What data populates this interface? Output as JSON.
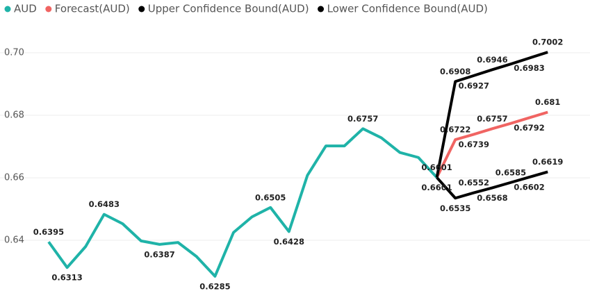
{
  "chart_data": {
    "type": "line",
    "legend": "top-left",
    "grid": true,
    "ylim": [
      0.626,
      0.712
    ],
    "yticks": [
      {
        "value": 0.64,
        "label": "0.64"
      },
      {
        "value": 0.66,
        "label": "0.66"
      },
      {
        "value": 0.68,
        "label": "0.68"
      },
      {
        "value": 0.7,
        "label": "0.70"
      }
    ],
    "series": [
      {
        "name": "AUD",
        "color": "#1fb3a8",
        "values": [
          0.6395,
          0.6313,
          0.638,
          0.6483,
          0.6453,
          0.6398,
          0.6387,
          0.6393,
          0.6348,
          0.6285,
          0.6425,
          0.6475,
          0.6505,
          0.6428,
          0.6608,
          0.6702,
          0.6702,
          0.6757,
          0.6728,
          0.6681,
          0.6665,
          0.6601,
          null,
          null,
          null,
          null,
          null,
          null
        ],
        "value_labels": [
          "0.6395",
          "0.6313",
          null,
          "0.6483",
          null,
          null,
          "0.6387",
          null,
          null,
          "0.6285",
          null,
          null,
          "0.6505",
          "0.6428",
          null,
          null,
          null,
          "0.6757",
          null,
          null,
          null,
          "0.6601",
          null,
          null,
          null,
          null,
          null,
          null
        ]
      },
      {
        "name": "Forecast(AUD)",
        "color": "#f06462",
        "values": [
          null,
          null,
          null,
          null,
          null,
          null,
          null,
          null,
          null,
          null,
          null,
          null,
          null,
          null,
          null,
          null,
          null,
          null,
          null,
          null,
          null,
          0.6601,
          0.6722,
          0.6739,
          0.6757,
          0.6774,
          0.6792,
          0.681
        ],
        "value_labels": [
          null,
          null,
          null,
          null,
          null,
          null,
          null,
          null,
          null,
          null,
          null,
          null,
          null,
          null,
          null,
          null,
          null,
          null,
          null,
          null,
          null,
          null,
          "0.6722",
          "0.6739",
          "0.6757",
          null,
          "0.6792",
          "0.681"
        ]
      },
      {
        "name": "Upper Confidence Bound(AUD)",
        "color": "#000000",
        "values": [
          null,
          null,
          null,
          null,
          null,
          null,
          null,
          null,
          null,
          null,
          null,
          null,
          null,
          null,
          null,
          null,
          null,
          null,
          null,
          null,
          null,
          0.6601,
          0.6908,
          0.6927,
          0.6946,
          0.6964,
          0.6983,
          0.7002
        ],
        "value_labels": [
          null,
          null,
          null,
          null,
          null,
          null,
          null,
          null,
          null,
          null,
          null,
          null,
          null,
          null,
          null,
          null,
          null,
          null,
          null,
          null,
          null,
          null,
          "0.6908",
          "0.6927",
          "0.6946",
          null,
          "0.6983",
          "0.7002"
        ]
      },
      {
        "name": "Lower Confidence Bound(AUD)",
        "color": "#000000",
        "values": [
          null,
          null,
          null,
          null,
          null,
          null,
          null,
          null,
          null,
          null,
          null,
          null,
          null,
          null,
          null,
          null,
          null,
          null,
          null,
          null,
          null,
          0.6601,
          0.6535,
          0.6552,
          0.6568,
          0.6585,
          0.6602,
          0.6619
        ],
        "value_labels": [
          null,
          null,
          null,
          null,
          null,
          null,
          null,
          null,
          null,
          null,
          null,
          null,
          null,
          null,
          null,
          null,
          null,
          null,
          null,
          null,
          null,
          "0.6601",
          "0.6535",
          "0.6552",
          "0.6568",
          "0.6585",
          "0.6602",
          "0.6619"
        ]
      }
    ]
  }
}
